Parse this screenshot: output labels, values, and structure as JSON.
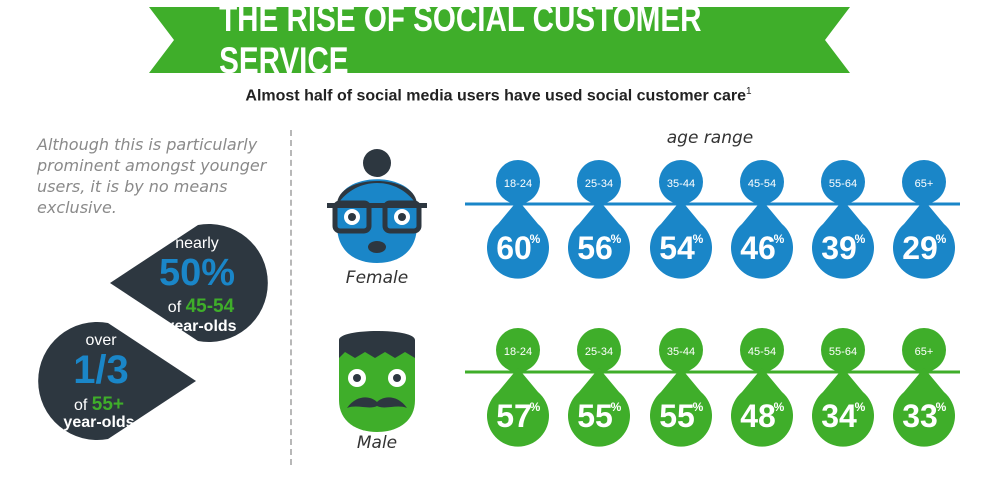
{
  "title": "THE RISE OF SOCIAL CUSTOMER SERVICE",
  "subtitle": "Almost half of social media users have used social customer care",
  "subtitle_footnote": "1",
  "left_note": "Although this is particularly prominent amongst younger users, it is by no means exclusive.",
  "stat_1": {
    "top": "nearly",
    "value": "50%",
    "of": "of",
    "group": "45-54",
    "bottom": "year-olds"
  },
  "stat_2": {
    "top": "over",
    "value": "1/3",
    "of": "of",
    "group": "55+",
    "bottom": "year-olds"
  },
  "colors": {
    "green": "#3fae2a",
    "blue": "#1a86c8",
    "dark": "#2d3740"
  },
  "chart_data": {
    "type": "bar",
    "xlabel": "age range",
    "categories": [
      "18-24",
      "25-34",
      "35-44",
      "45-54",
      "55-64",
      "65+"
    ],
    "series": [
      {
        "name": "Female",
        "values": [
          60,
          56,
          54,
          46,
          39,
          29
        ]
      },
      {
        "name": "Male",
        "values": [
          57,
          55,
          55,
          48,
          34,
          33
        ]
      }
    ]
  }
}
